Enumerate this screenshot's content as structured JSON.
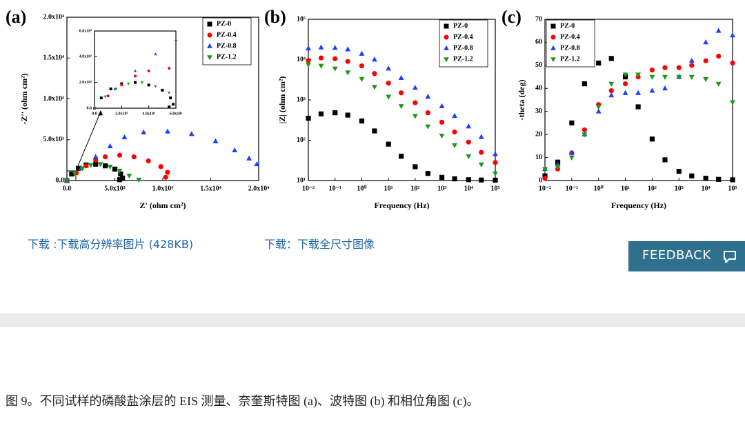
{
  "chart_data": [
    {
      "type": "scatter",
      "panel_label": "(a)",
      "x_label": "Z' (ohm cm²)",
      "y_label": "-Z'' (ohm cm²)",
      "xlim": [
        0,
        20000
      ],
      "ylim": [
        0,
        20000
      ],
      "xticks": [
        {
          "value": 0,
          "label": "0.0"
        },
        {
          "value": 5000,
          "label": "5.0x10³"
        },
        {
          "value": 10000,
          "label": "1.0x10⁴"
        },
        {
          "value": 15000,
          "label": "1.5x10⁴"
        },
        {
          "value": 20000,
          "label": "2.0x10⁴"
        }
      ],
      "yticks": [
        {
          "value": 0,
          "label": "0.0"
        },
        {
          "value": 5000,
          "label": "5.0x10³"
        },
        {
          "value": 10000,
          "label": "1.0x10⁴"
        },
        {
          "value": 15000,
          "label": "1.5x10⁴"
        },
        {
          "value": 20000,
          "label": "2.0x10⁴"
        }
      ],
      "legend": "upper right",
      "series": [
        {
          "name": "PZ-0",
          "color": "#000000",
          "marker": "square",
          "x": [
            0,
            500,
            1200,
            2000,
            3000,
            4000,
            5000,
            5600,
            5800,
            5500
          ],
          "values": [
            0,
            800,
            1500,
            1900,
            2000,
            1800,
            1400,
            800,
            300,
            100
          ]
        },
        {
          "name": "PZ-0.4",
          "color": "#ff0000",
          "marker": "circle",
          "x": [
            0,
            1000,
            2000,
            3000,
            4000,
            5500,
            7000,
            8500,
            9800,
            10500,
            10300
          ],
          "values": [
            0,
            950,
            1800,
            2500,
            2900,
            3100,
            2900,
            2400,
            1700,
            1000,
            400
          ]
        },
        {
          "name": "PZ-0.8",
          "color": "#1f3fff",
          "marker": "triangle",
          "x": [
            0,
            1500,
            3000,
            4500,
            6000,
            8000,
            10500,
            13000,
            15500,
            17500,
            19000,
            19800
          ],
          "values": [
            0,
            1500,
            2900,
            4200,
            5300,
            5900,
            6000,
            5700,
            4800,
            3700,
            2700,
            2000
          ]
        },
        {
          "name": "PZ-1.2",
          "color": "#1a9a1a",
          "marker": "down-triangle",
          "x": [
            0,
            800,
            1600,
            2500,
            3500,
            4500,
            5500,
            6500,
            7500
          ],
          "values": [
            0,
            900,
            1500,
            1900,
            2000,
            1700,
            1200,
            600,
            100
          ]
        }
      ],
      "inset": {
        "xlim": [
          0,
          6000
        ],
        "ylim": [
          0,
          6000
        ],
        "xticks": [
          {
            "value": 0,
            "label": "0.0"
          },
          {
            "value": 2000,
            "label": "2.0x10³"
          },
          {
            "value": 4000,
            "label": "4.0x10³"
          },
          {
            "value": 6000,
            "label": "6.0x10³"
          }
        ],
        "yticks": [
          {
            "value": 0,
            "label": "0.0"
          },
          {
            "value": 2000,
            "label": "2.0x10³"
          },
          {
            "value": 4000,
            "label": "4.0x10³"
          },
          {
            "value": 6000,
            "label": "6.0x10³"
          }
        ]
      }
    },
    {
      "type": "scatter",
      "panel_label": "(b)",
      "x_label": "Frequency (Hz)",
      "y_label": "|Z| (ohm cm²)",
      "xscale": "log",
      "yscale": "log",
      "xlim": [
        0.01,
        100000
      ],
      "ylim": [
        10,
        100000
      ],
      "xticks": [
        {
          "value": 0.01,
          "label": "10⁻²"
        },
        {
          "value": 0.1,
          "label": "10⁻¹"
        },
        {
          "value": 1,
          "label": "10⁰"
        },
        {
          "value": 10,
          "label": "10¹"
        },
        {
          "value": 100,
          "label": "10²"
        },
        {
          "value": 1000,
          "label": "10³"
        },
        {
          "value": 10000,
          "label": "10⁴"
        },
        {
          "value": 100000,
          "label": "10⁵"
        }
      ],
      "yticks": [
        {
          "value": 10,
          "label": "10¹"
        },
        {
          "value": 100,
          "label": "10²"
        },
        {
          "value": 1000,
          "label": "10³"
        },
        {
          "value": 10000,
          "label": "10⁴"
        },
        {
          "value": 100000,
          "label": "10⁵"
        }
      ],
      "legend": "upper right",
      "x": [
        0.01,
        0.03,
        0.1,
        0.3,
        1,
        3,
        10,
        30,
        100,
        300,
        1000,
        3000,
        10000,
        30000,
        100000
      ],
      "series": [
        {
          "name": "PZ-0",
          "color": "#000000",
          "marker": "square",
          "values": [
            350,
            450,
            480,
            420,
            300,
            170,
            80,
            40,
            22,
            15,
            12,
            11,
            10.5,
            10.3,
            10.2
          ]
        },
        {
          "name": "PZ-0.4",
          "color": "#ff0000",
          "marker": "circle",
          "values": [
            9500,
            11000,
            10500,
            9000,
            7000,
            4500,
            2600,
            1500,
            850,
            480,
            280,
            160,
            90,
            50,
            28
          ]
        },
        {
          "name": "PZ-0.8",
          "color": "#1f3fff",
          "marker": "triangle",
          "values": [
            19000,
            20000,
            19500,
            18000,
            14000,
            10000,
            6000,
            3500,
            2000,
            1200,
            700,
            400,
            220,
            120,
            45
          ]
        },
        {
          "name": "PZ-1.2",
          "color": "#1a9a1a",
          "marker": "down-triangle",
          "values": [
            7500,
            7000,
            6000,
            4800,
            3300,
            2100,
            1200,
            700,
            400,
            220,
            130,
            75,
            40,
            25,
            15
          ]
        }
      ]
    },
    {
      "type": "scatter",
      "panel_label": "(c)",
      "x_label": "Frequency (Hz)",
      "y_label": "-theta (deg)",
      "xscale": "log",
      "xlim": [
        0.01,
        100000
      ],
      "ylim": [
        0,
        70
      ],
      "xticks": [
        {
          "value": 0.01,
          "label": "10⁻²"
        },
        {
          "value": 0.1,
          "label": "10⁻¹"
        },
        {
          "value": 1,
          "label": "10⁰"
        },
        {
          "value": 10,
          "label": "10¹"
        },
        {
          "value": 100,
          "label": "10²"
        },
        {
          "value": 1000,
          "label": "10³"
        },
        {
          "value": 10000,
          "label": "10⁴"
        },
        {
          "value": 100000,
          "label": "10⁵"
        }
      ],
      "yticks": [
        0,
        10,
        20,
        30,
        40,
        50,
        60,
        70
      ],
      "legend": "upper left",
      "x": [
        0.01,
        0.03,
        0.1,
        0.3,
        1,
        3,
        10,
        30,
        100,
        300,
        1000,
        3000,
        10000,
        30000,
        100000
      ],
      "series": [
        {
          "name": "PZ-0",
          "color": "#000000",
          "marker": "square",
          "values": [
            2,
            8,
            25,
            42,
            51,
            53,
            45,
            32,
            18,
            9,
            4,
            2,
            1,
            0.5,
            0.3
          ]
        },
        {
          "name": "PZ-0.4",
          "color": "#ff0000",
          "marker": "circle",
          "values": [
            1,
            5,
            12,
            22,
            33,
            39,
            42,
            45,
            48,
            49,
            49,
            50,
            52,
            54,
            51
          ]
        },
        {
          "name": "PZ-0.8",
          "color": "#1f3fff",
          "marker": "triangle",
          "values": [
            5,
            7,
            12,
            20,
            30,
            37,
            38,
            38,
            39,
            40,
            45,
            52,
            60,
            65,
            63
          ]
        },
        {
          "name": "PZ-1.2",
          "color": "#1a9a1a",
          "marker": "down-triangle",
          "values": [
            5,
            6,
            10,
            20,
            32,
            42,
            46,
            46,
            45,
            45,
            45,
            45,
            44,
            42,
            34
          ]
        }
      ]
    }
  ],
  "page": {
    "download_hires": "下载 :下载高分辨率图片 (428KB)",
    "download_full": "下载：下载全尺寸图像",
    "feedback": "FEEDBACK",
    "caption": "图 9。不同试样的磷酸盐涂层的 EIS 测量、奈奎斯特图 (a)、波特图 (b) 和相位角图 (c)。"
  }
}
